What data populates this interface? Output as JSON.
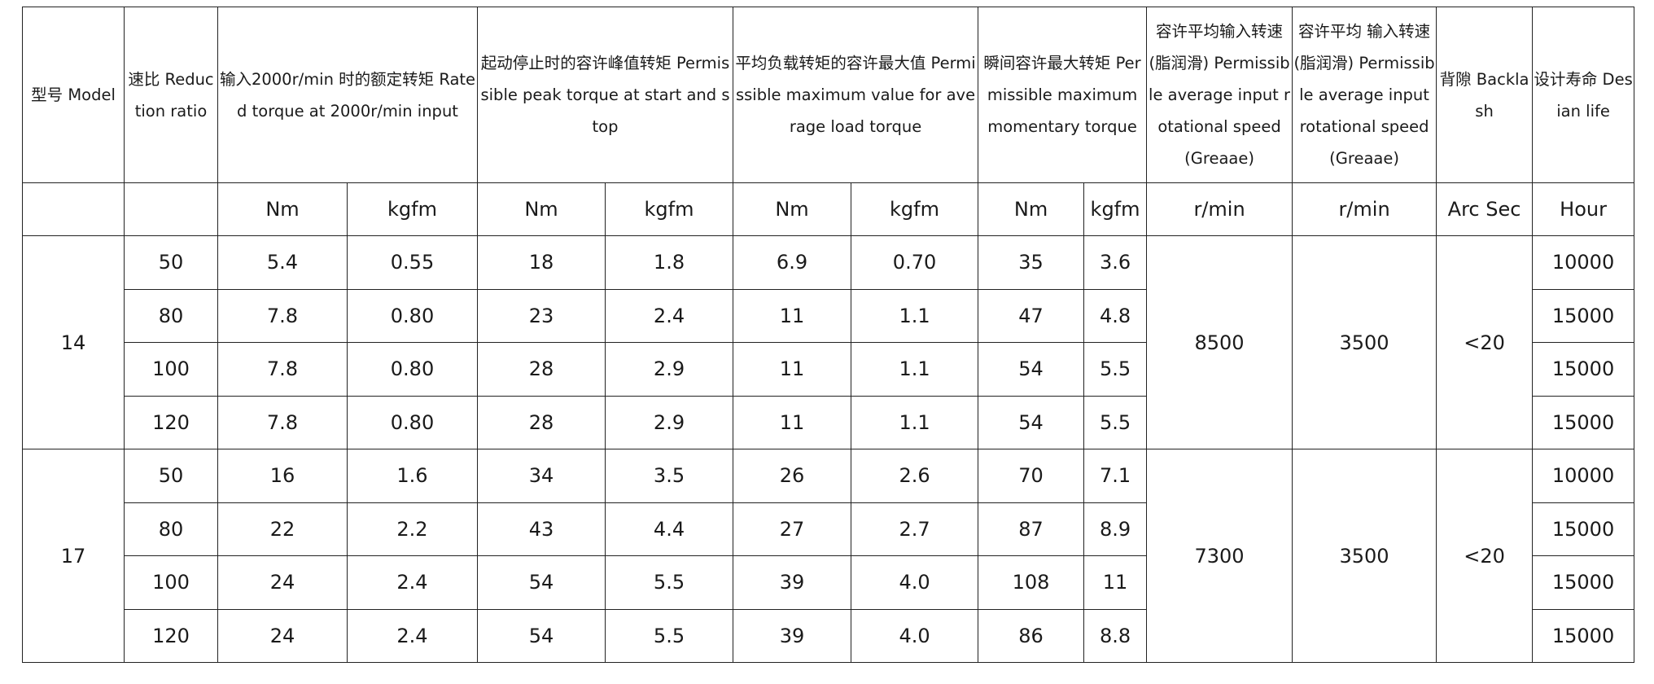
{
  "table": {
    "headers": {
      "model": "型号 Model",
      "ratio": "速比 Reduction ratio",
      "rated": "输入2000r/min 时的额定转矩 Rated torque at 2000r/min input",
      "peak": "起动停止时的容许峰值转矩 Permissible peak torque at start and stop",
      "avg_load": "平均负载转矩的容许最大值 Permissible maximum value for average load torque",
      "momentary": "瞬间容许最大转矩 Permissible maximum momentary torque",
      "speed_grease_1": "容许平均输入转速 (脂润滑) Permissible average input rotational speed (Greaae)",
      "speed_grease_2": "容许平均 输入转速 (脂润滑) Permissible average input rotational speed (Greaae)",
      "backlash": "背隙 Backlash",
      "life": "设计寿命 Desian life"
    },
    "units": {
      "rated_nm": "Nm",
      "rated_kgfm": "kgfm",
      "peak_nm": "Nm",
      "peak_kgfm": "kgfm",
      "avg_nm": "Nm",
      "avg_kgfm": "kgfm",
      "mom_nm": "Nm",
      "mom_kgfm": "kgfm",
      "speed_1": "r/min",
      "speed_2": "r/min",
      "backlash": "Arc Sec",
      "life": "Hour"
    },
    "groups": [
      {
        "model": "14",
        "speed_1": "8500",
        "speed_2": "3500",
        "backlash": "<20",
        "rows": [
          {
            "ratio": "50",
            "rated_nm": "5.4",
            "rated_kgfm": "0.55",
            "peak_nm": "18",
            "peak_kgfm": "1.8",
            "avg_nm": "6.9",
            "avg_kgfm": "0.70",
            "mom_nm": "35",
            "mom_kgfm": "3.6",
            "life": "10000"
          },
          {
            "ratio": "80",
            "rated_nm": "7.8",
            "rated_kgfm": "0.80",
            "peak_nm": "23",
            "peak_kgfm": "2.4",
            "avg_nm": "11",
            "avg_kgfm": "1.1",
            "mom_nm": "47",
            "mom_kgfm": "4.8",
            "life": "15000"
          },
          {
            "ratio": "100",
            "rated_nm": "7.8",
            "rated_kgfm": "0.80",
            "peak_nm": "28",
            "peak_kgfm": "2.9",
            "avg_nm": "11",
            "avg_kgfm": "1.1",
            "mom_nm": "54",
            "mom_kgfm": "5.5",
            "life": "15000"
          },
          {
            "ratio": "120",
            "rated_nm": "7.8",
            "rated_kgfm": "0.80",
            "peak_nm": "28",
            "peak_kgfm": "2.9",
            "avg_nm": "11",
            "avg_kgfm": "1.1",
            "mom_nm": "54",
            "mom_kgfm": "5.5",
            "life": "15000"
          }
        ]
      },
      {
        "model": "17",
        "speed_1": "7300",
        "speed_2": "3500",
        "backlash": "<20",
        "rows": [
          {
            "ratio": "50",
            "rated_nm": "16",
            "rated_kgfm": "1.6",
            "peak_nm": "34",
            "peak_kgfm": "3.5",
            "avg_nm": "26",
            "avg_kgfm": "2.6",
            "mom_nm": "70",
            "mom_kgfm": "7.1",
            "life": "10000"
          },
          {
            "ratio": "80",
            "rated_nm": "22",
            "rated_kgfm": "2.2",
            "peak_nm": "43",
            "peak_kgfm": "4.4",
            "avg_nm": "27",
            "avg_kgfm": "2.7",
            "mom_nm": "87",
            "mom_kgfm": "8.9",
            "life": "15000"
          },
          {
            "ratio": "100",
            "rated_nm": "24",
            "rated_kgfm": "2.4",
            "peak_nm": "54",
            "peak_kgfm": "5.5",
            "avg_nm": "39",
            "avg_kgfm": "4.0",
            "mom_nm": "108",
            "mom_kgfm": "11",
            "life": "15000"
          },
          {
            "ratio": "120",
            "rated_nm": "24",
            "rated_kgfm": "2.4",
            "peak_nm": "54",
            "peak_kgfm": "5.5",
            "avg_nm": "39",
            "avg_kgfm": "4.0",
            "mom_nm": "86",
            "mom_kgfm": "8.8",
            "life": "15000"
          }
        ]
      }
    ]
  }
}
